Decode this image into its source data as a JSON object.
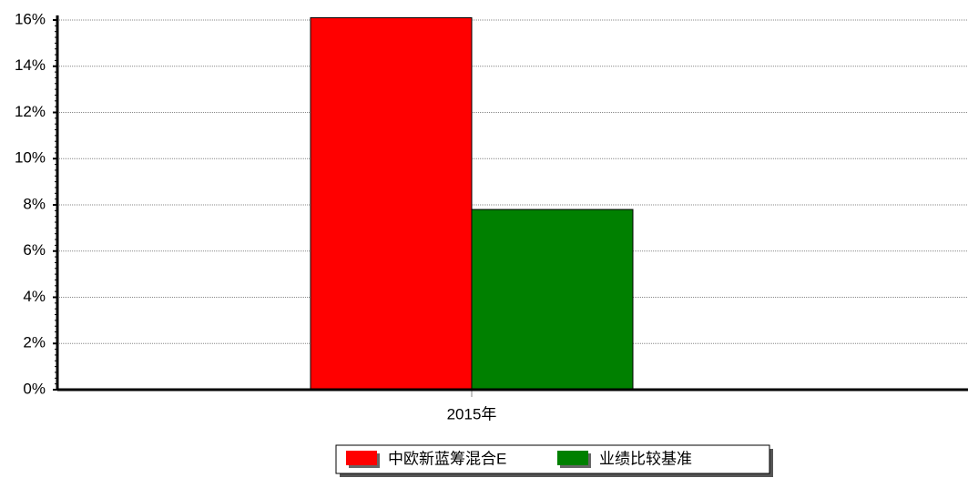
{
  "chart_data": {
    "type": "bar",
    "categories": [
      "2015年"
    ],
    "series": [
      {
        "name": "中欧新蓝筹混合E",
        "color": "#ff0000",
        "values": [
          16.1
        ]
      },
      {
        "name": "业绩比较基准",
        "color": "#008000",
        "values": [
          7.8
        ]
      }
    ],
    "ylim": [
      0,
      16.2
    ],
    "yticks": [
      {
        "value": 0,
        "label": "0%"
      },
      {
        "value": 2,
        "label": "2%"
      },
      {
        "value": 4,
        "label": "4%"
      },
      {
        "value": 6,
        "label": "6%"
      },
      {
        "value": 8,
        "label": "8%"
      },
      {
        "value": 10,
        "label": "10%"
      },
      {
        "value": 12,
        "label": "12%"
      },
      {
        "value": 14,
        "label": "14%"
      },
      {
        "value": 16,
        "label": "16%"
      }
    ],
    "grid": true
  }
}
